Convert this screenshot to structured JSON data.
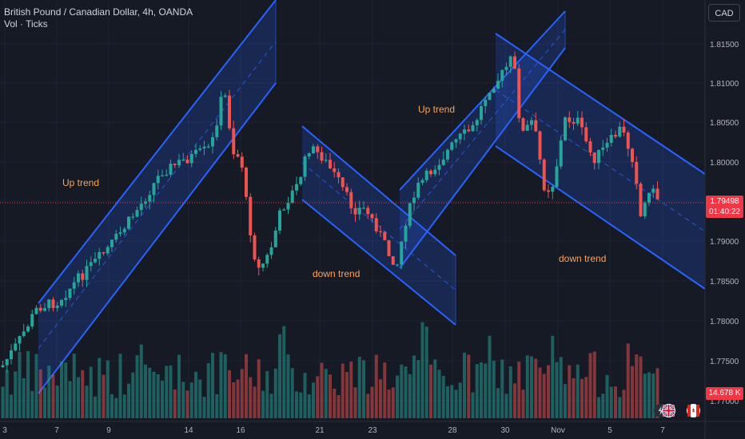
{
  "header": {
    "title": "British Pound / Canadian Dollar, 4h, OANDA",
    "subtitle": "Vol · Ticks"
  },
  "currency_button": "CAD",
  "colors": {
    "background": "#161a25",
    "bull": "#26a69a",
    "bear": "#ef5350",
    "channel": "#2962ff",
    "annotation": "#f7a35c",
    "price_tag": "#f23645",
    "volume_tag": "#f23645"
  },
  "price_axis": {
    "ticks": [
      "1.81500",
      "1.81000",
      "1.80500",
      "1.80000",
      "1.79500",
      "1.79000",
      "1.78500",
      "1.78000",
      "1.77500",
      "1.77000"
    ]
  },
  "current_price": {
    "price": "1.79498",
    "countdown": "01:40:22"
  },
  "volume_label": "14.678 K",
  "time_axis": {
    "labels": [
      "3",
      "7",
      "9",
      "14",
      "16",
      "21",
      "23",
      "28",
      "30",
      "Nov",
      "5",
      "7"
    ]
  },
  "annotations": [
    {
      "text": "Up trend"
    },
    {
      "text": "down trend"
    },
    {
      "text": "Up trend"
    },
    {
      "text": "down trend"
    }
  ],
  "icons": [
    "lightning-icon",
    "uk-flag-icon",
    "canada-flag-icon"
  ]
}
